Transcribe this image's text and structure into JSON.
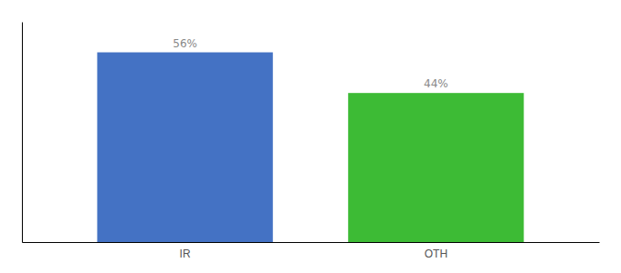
{
  "chart_data": {
    "type": "bar",
    "categories": [
      "IR",
      "OTH"
    ],
    "values": [
      56,
      44
    ],
    "value_labels": [
      "56%",
      "44%"
    ],
    "colors": [
      "#4472c4",
      "#3dbb35"
    ],
    "ylim": [
      0,
      65
    ],
    "yticks": [],
    "data_labels": true,
    "tick_labels": "x",
    "grid": false
  }
}
